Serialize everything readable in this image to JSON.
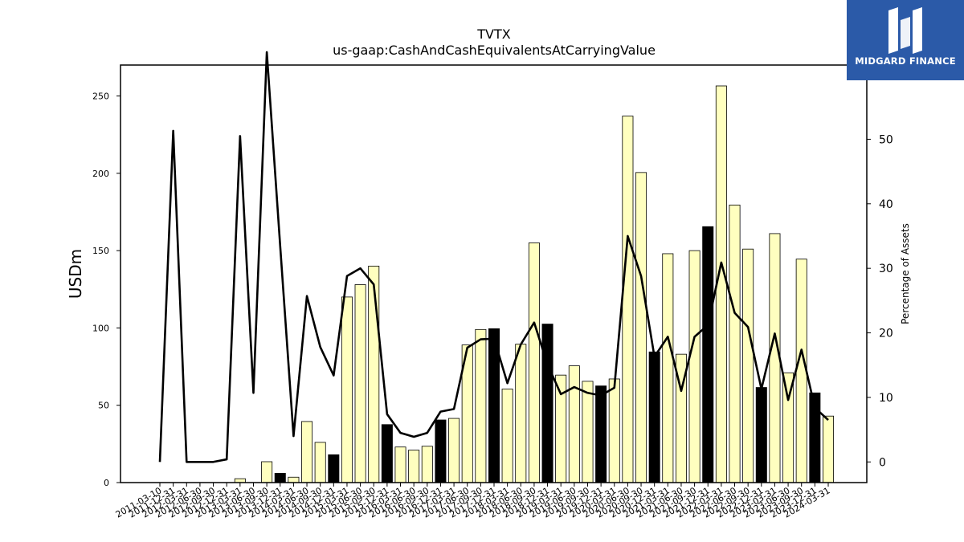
{
  "logo": {
    "text": "MIDGARD FINANCE"
  },
  "chart_data": {
    "type": "bar",
    "title": "TVTX",
    "subtitle": "us-gaap:CashAndCashEquivalentsAtCarryingValue",
    "ylabel": "USDm",
    "ylabel_right": "Percentage of Assets",
    "ylim": [
      0,
      270
    ],
    "ylim_right": [
      -3.2,
      61.5
    ],
    "yticks": [
      0,
      50,
      100,
      150,
      200,
      250
    ],
    "yticks_right": [
      0,
      10,
      20,
      30,
      40,
      50
    ],
    "grid": false,
    "categories": [
      "2011-03-10",
      "2011-12-31",
      "2012-03-31",
      "2012-06-30",
      "2012-09-30",
      "2012-12-31",
      "2013-03-31",
      "2013-06-30",
      "2013-09-30",
      "2013-12-31",
      "2014-03-31",
      "2014-06-30",
      "2014-09-30",
      "2014-12-31",
      "2015-03-31",
      "2015-06-30",
      "2015-09-30",
      "2015-12-31",
      "2016-03-31",
      "2016-06-30",
      "2016-09-30",
      "2016-12-31",
      "2017-03-31",
      "2017-06-30",
      "2017-09-30",
      "2017-12-31",
      "2018-03-31",
      "2018-06-30",
      "2018-09-30",
      "2018-12-31",
      "2019-03-31",
      "2019-06-30",
      "2019-09-30",
      "2019-12-31",
      "2020-03-31",
      "2020-06-30",
      "2020-09-30",
      "2020-12-31",
      "2021-03-31",
      "2021-06-30",
      "2021-09-30",
      "2021-12-31",
      "2022-03-31",
      "2022-06-30",
      "2022-09-30",
      "2022-12-31",
      "2023-03-31",
      "2023-06-30",
      "2023-09-30",
      "2023-12-31",
      "2024-03-31"
    ],
    "series": [
      {
        "type": "bar",
        "axis": "left",
        "values": [
          0,
          0,
          0,
          0,
          0,
          0,
          2.5,
          0,
          13.5,
          6,
          3.5,
          39.5,
          26,
          18,
          120,
          128,
          140,
          37.5,
          23,
          21,
          23.5,
          40.5,
          41.5,
          89,
          99,
          99.5,
          60.5,
          89.5,
          155,
          102.5,
          69.5,
          75.5,
          65.5,
          62.5,
          67,
          237,
          200.5,
          84.5,
          148,
          83,
          150,
          165.5,
          256.5,
          179.5,
          151,
          61.5,
          161,
          71,
          144.5,
          58,
          43
        ],
        "highlight": [
          false,
          false,
          false,
          false,
          false,
          false,
          false,
          false,
          false,
          true,
          false,
          false,
          false,
          true,
          false,
          false,
          false,
          true,
          false,
          false,
          false,
          true,
          false,
          false,
          false,
          true,
          false,
          false,
          false,
          true,
          false,
          false,
          false,
          true,
          false,
          false,
          false,
          true,
          false,
          false,
          false,
          true,
          false,
          false,
          false,
          true,
          false,
          false,
          false,
          true,
          false
        ]
      },
      {
        "type": "line",
        "axis": "right",
        "values": [
          0,
          51.3,
          0,
          0,
          0,
          0.4,
          50.5,
          10.7,
          63.5,
          33.5,
          4,
          25.7,
          17.8,
          13.4,
          28.8,
          30,
          27.5,
          7.4,
          4.5,
          3.9,
          4.5,
          7.8,
          8.2,
          17.7,
          19,
          19.1,
          12.2,
          18.2,
          21.6,
          15.1,
          10.5,
          11.6,
          10.7,
          10.3,
          11.5,
          35,
          28.8,
          16.3,
          19.4,
          11,
          19.4,
          21.2,
          30.9,
          23.1,
          20.9,
          11.3,
          19.9,
          9.6,
          17.4,
          8.4,
          6.5
        ]
      }
    ],
    "colors": {
      "bar": "#ffffbf",
      "bar_highlight": "#000000",
      "bar_edge": "#000000",
      "line": "#000000"
    }
  }
}
